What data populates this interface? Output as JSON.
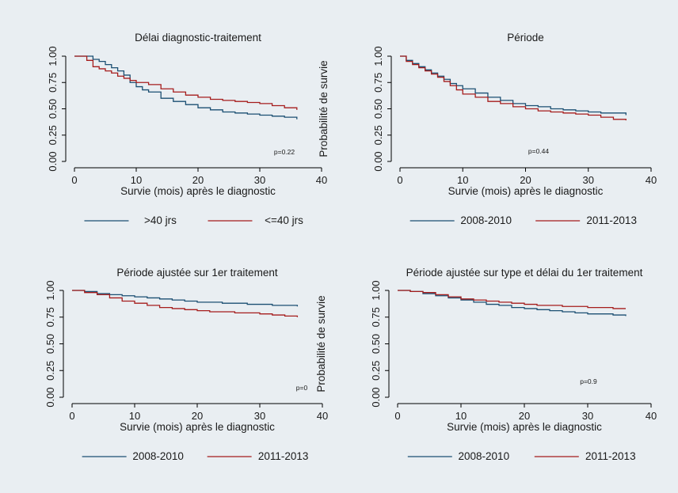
{
  "colors": {
    "background": "#e9eef2",
    "panel": "#ffffff",
    "axis": "#000000",
    "series_blue": "#1b4f72",
    "series_red": "#a51c1c"
  },
  "chart_data": [
    {
      "type": "line",
      "title": "Délai diagnostic-traitement",
      "xlabel": "Survie (mois) après le diagnostic",
      "ylabel": "",
      "xlim": [
        0,
        40
      ],
      "ylim": [
        0,
        1
      ],
      "xticks": [
        "0",
        "10",
        "20",
        "30",
        "40"
      ],
      "yticks": [
        "0.00",
        "0.25",
        "0.50",
        "0.75",
        "1.00"
      ],
      "annotation": "p=0.22",
      "legend_position": "bottom",
      "series": [
        {
          "name": ">40 jrs",
          "color": "#1b4f72",
          "x": [
            0,
            2,
            3,
            4,
            5,
            6,
            7,
            8,
            9,
            10,
            11,
            12,
            14,
            16,
            18,
            20,
            22,
            24,
            26,
            28,
            30,
            32,
            34,
            36
          ],
          "y": [
            1.0,
            1.0,
            0.97,
            0.95,
            0.92,
            0.89,
            0.86,
            0.82,
            0.75,
            0.71,
            0.68,
            0.66,
            0.6,
            0.57,
            0.54,
            0.51,
            0.49,
            0.47,
            0.46,
            0.45,
            0.44,
            0.43,
            0.42,
            0.4
          ]
        },
        {
          "name": "<=40 jrs",
          "color": "#a51c1c",
          "x": [
            0,
            2,
            3,
            4,
            5,
            6,
            7,
            8,
            9,
            10,
            12,
            14,
            16,
            18,
            20,
            22,
            24,
            26,
            28,
            30,
            32,
            34,
            36
          ],
          "y": [
            1.0,
            0.96,
            0.9,
            0.88,
            0.86,
            0.84,
            0.81,
            0.79,
            0.77,
            0.75,
            0.73,
            0.69,
            0.66,
            0.63,
            0.61,
            0.59,
            0.58,
            0.57,
            0.56,
            0.55,
            0.53,
            0.51,
            0.49
          ]
        }
      ]
    },
    {
      "type": "line",
      "title": "Période",
      "xlabel": "Survie (mois) après le diagnostic",
      "ylabel": "Probabilité de survie",
      "xlim": [
        0,
        40
      ],
      "ylim": [
        0,
        1
      ],
      "xticks": [
        "0",
        "10",
        "20",
        "30",
        "40"
      ],
      "yticks": [
        "0.00",
        "0.25",
        "0.50",
        "0.75",
        "1.00"
      ],
      "annotation": "p=0.44",
      "legend_position": "bottom",
      "series": [
        {
          "name": "2008-2010",
          "color": "#1b4f72",
          "x": [
            0,
            1,
            2,
            3,
            4,
            5,
            6,
            7,
            8,
            9,
            10,
            12,
            14,
            16,
            18,
            20,
            22,
            24,
            26,
            28,
            30,
            32,
            34,
            36
          ],
          "y": [
            1.0,
            0.96,
            0.93,
            0.9,
            0.87,
            0.84,
            0.81,
            0.78,
            0.74,
            0.72,
            0.69,
            0.65,
            0.61,
            0.58,
            0.55,
            0.53,
            0.52,
            0.5,
            0.49,
            0.48,
            0.47,
            0.46,
            0.46,
            0.44
          ]
        },
        {
          "name": "2011-2013",
          "color": "#a51c1c",
          "x": [
            0,
            1,
            2,
            3,
            4,
            5,
            6,
            7,
            8,
            9,
            10,
            12,
            14,
            16,
            18,
            20,
            22,
            24,
            26,
            28,
            30,
            32,
            34,
            36
          ],
          "y": [
            1.0,
            0.95,
            0.92,
            0.89,
            0.86,
            0.83,
            0.8,
            0.76,
            0.72,
            0.68,
            0.64,
            0.61,
            0.57,
            0.55,
            0.52,
            0.5,
            0.48,
            0.47,
            0.46,
            0.45,
            0.44,
            0.42,
            0.4,
            0.39
          ]
        }
      ]
    },
    {
      "type": "line",
      "title": "Période ajustée sur 1er traitement",
      "xlabel": "Survie (mois) après le diagnostic",
      "ylabel": "",
      "xlim": [
        0,
        40
      ],
      "ylim": [
        0,
        1
      ],
      "xticks": [
        "0",
        "10",
        "20",
        "30",
        "40"
      ],
      "yticks": [
        "0.00",
        "0.25",
        "0.50",
        "0.75",
        "1.00"
      ],
      "annotation": "p=0",
      "legend_position": "bottom",
      "series": [
        {
          "name": "2008-2010",
          "color": "#1b4f72",
          "x": [
            0,
            2,
            4,
            6,
            8,
            10,
            12,
            14,
            16,
            18,
            20,
            22,
            24,
            26,
            28,
            30,
            32,
            34,
            36
          ],
          "y": [
            1.0,
            0.99,
            0.97,
            0.96,
            0.95,
            0.94,
            0.93,
            0.92,
            0.91,
            0.9,
            0.89,
            0.89,
            0.88,
            0.88,
            0.87,
            0.87,
            0.86,
            0.86,
            0.85
          ]
        },
        {
          "name": "2011-2013",
          "color": "#a51c1c",
          "x": [
            0,
            2,
            4,
            6,
            8,
            10,
            12,
            14,
            16,
            18,
            20,
            22,
            24,
            26,
            28,
            30,
            32,
            34,
            36
          ],
          "y": [
            1.0,
            0.98,
            0.96,
            0.93,
            0.9,
            0.88,
            0.86,
            0.84,
            0.83,
            0.82,
            0.81,
            0.8,
            0.8,
            0.79,
            0.79,
            0.78,
            0.77,
            0.76,
            0.75
          ]
        }
      ]
    },
    {
      "type": "line",
      "title": "Période ajustée sur type et délai du 1er traitement",
      "xlabel": "Survie (mois) après le diagnostic",
      "ylabel": "Probabilité de survie",
      "xlim": [
        0,
        40
      ],
      "ylim": [
        0,
        1
      ],
      "xticks": [
        "0",
        "10",
        "20",
        "30",
        "40"
      ],
      "yticks": [
        "0.00",
        "0.25",
        "0.50",
        "0.75",
        "1.00"
      ],
      "annotation": "p=0.9",
      "legend_position": "bottom",
      "series": [
        {
          "name": "2008-2010",
          "color": "#1b4f72",
          "x": [
            0,
            2,
            4,
            6,
            8,
            10,
            12,
            14,
            16,
            18,
            20,
            22,
            24,
            26,
            28,
            30,
            32,
            34,
            36
          ],
          "y": [
            1.0,
            0.99,
            0.97,
            0.95,
            0.93,
            0.91,
            0.89,
            0.87,
            0.86,
            0.84,
            0.83,
            0.82,
            0.81,
            0.8,
            0.79,
            0.78,
            0.78,
            0.77,
            0.76
          ]
        },
        {
          "name": "2011-2013",
          "color": "#a51c1c",
          "x": [
            0,
            2,
            4,
            6,
            8,
            10,
            12,
            14,
            16,
            18,
            20,
            22,
            24,
            26,
            28,
            30,
            32,
            34,
            36
          ],
          "y": [
            1.0,
            0.99,
            0.98,
            0.96,
            0.94,
            0.92,
            0.91,
            0.9,
            0.89,
            0.88,
            0.87,
            0.86,
            0.86,
            0.85,
            0.85,
            0.84,
            0.84,
            0.83,
            0.83
          ]
        }
      ]
    }
  ]
}
